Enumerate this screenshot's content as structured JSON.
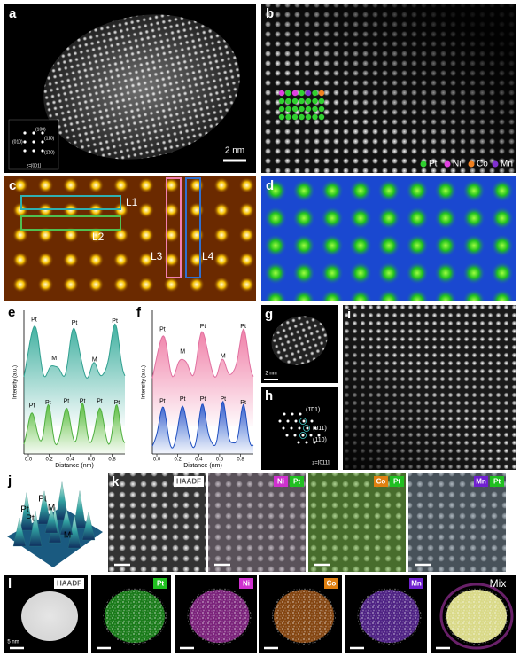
{
  "a": {
    "label": "a",
    "scale": "2 nm",
    "zone": "z=[001]",
    "spots": [
      "(100)",
      "(010)",
      "(110)",
      "(1̄10)"
    ]
  },
  "b": {
    "label": "b",
    "legend": [
      "Pt",
      "Ni",
      "Co",
      "Mn"
    ]
  },
  "c": {
    "label": "c",
    "lines": [
      "L1",
      "L2",
      "L3",
      "L4"
    ]
  },
  "d": {
    "label": "d"
  },
  "e": {
    "label": "e",
    "ylabel": "Intensity (a.u.)",
    "xlabel": "Distance (nm)",
    "xticks": [
      "0.0",
      "0.2",
      "0.4",
      "0.6",
      "0.8"
    ],
    "top_labels": [
      "Pt",
      "M",
      "Pt",
      "M",
      "Pt"
    ],
    "bottom_labels": [
      "Pt",
      "Pt",
      "Pt",
      "Pt",
      "Pt",
      "Pt"
    ]
  },
  "f": {
    "label": "f",
    "ylabel": "Intensity (a.u.)",
    "xlabel": "Distance (nm)",
    "xticks": [
      "0.0",
      "0.2",
      "0.4",
      "0.6",
      "0.8"
    ],
    "top_labels": [
      "Pt",
      "M",
      "Pt",
      "M",
      "Pt"
    ],
    "bottom_labels": [
      "Pt",
      "Pt",
      "Pt",
      "Pt",
      "Pt"
    ]
  },
  "g": {
    "label": "g",
    "scale": "2 nm"
  },
  "h": {
    "label": "h",
    "zone": "z=[011]",
    "spots": [
      "(1̄01)",
      "(011̄)",
      "(110)"
    ]
  },
  "i": {
    "label": "i"
  },
  "j": {
    "label": "j",
    "peaks": [
      "Pt",
      "Pt",
      "Pt",
      "M",
      "M"
    ]
  },
  "k": {
    "label": "k",
    "tags": [
      [
        "HAADF"
      ],
      [
        "Ni",
        "Pt"
      ],
      [
        "Co",
        "Pt"
      ],
      [
        "Mn",
        "Pt"
      ]
    ]
  },
  "l": {
    "label": "l",
    "tags": [
      "HAADF",
      "Pt",
      "Ni",
      "Co",
      "Mn",
      "Mix"
    ],
    "scale": "5 nm"
  }
}
